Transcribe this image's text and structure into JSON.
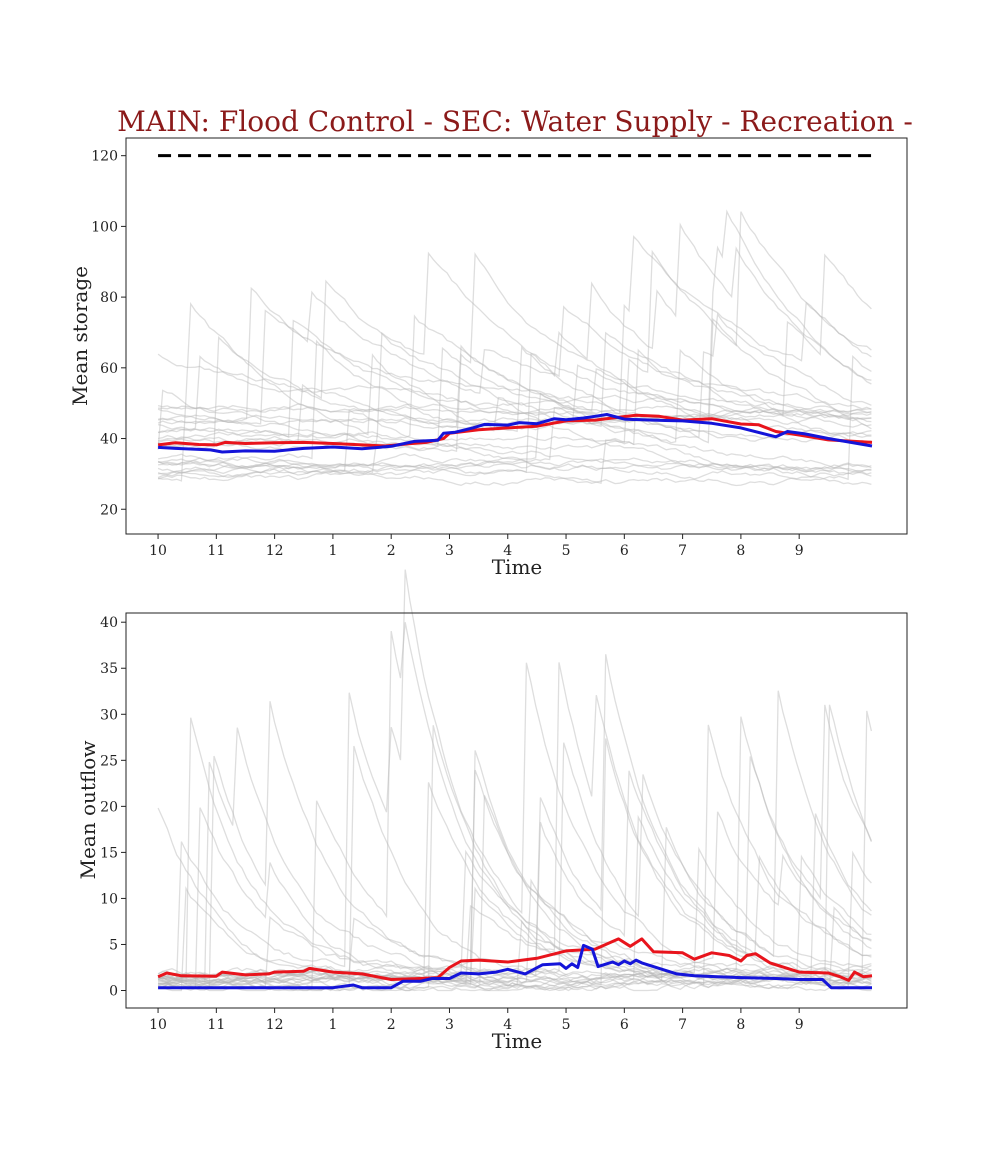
{
  "figure": {
    "title": "MAIN: Flood Control - SEC: Water Supply - Recreation -"
  },
  "chart_data": [
    {
      "type": "line",
      "ylabel": "Mean storage",
      "xlabel": "Time",
      "x_tick_labels": [
        "10",
        "11",
        "12",
        "1",
        "2",
        "3",
        "4",
        "5",
        "6",
        "7",
        "8",
        "9"
      ],
      "y_ticks": [
        20,
        40,
        60,
        80,
        100,
        120
      ],
      "xlim": [
        -0.55,
        12.85
      ],
      "ylim": [
        13,
        125
      ],
      "grid": false,
      "reference_line": {
        "value": 120,
        "style": "dashed",
        "color": "#000000",
        "x_range": [
          0,
          12.25
        ]
      },
      "colors": {
        "red": "#e8141c",
        "blue": "#1414d9",
        "ensemble": "#b5b5b5"
      },
      "series": [
        {
          "color": "red",
          "points": [
            [
              0,
              38.2
            ],
            [
              0.3,
              38.8
            ],
            [
              0.7,
              38.3
            ],
            [
              1,
              38.2
            ],
            [
              1.15,
              38.9
            ],
            [
              1.5,
              38.6
            ],
            [
              2,
              38.8
            ],
            [
              2.5,
              38.9
            ],
            [
              3,
              38.6
            ],
            [
              3.5,
              38.2
            ],
            [
              3.9,
              37.9
            ],
            [
              4.3,
              38.5
            ],
            [
              4.6,
              38.9
            ],
            [
              4.9,
              40
            ],
            [
              5,
              41.5
            ],
            [
              5.5,
              42.5
            ],
            [
              6,
              43
            ],
            [
              6.5,
              43.5
            ],
            [
              7,
              45
            ],
            [
              7.5,
              45.2
            ],
            [
              7.9,
              46
            ],
            [
              8.2,
              46.6
            ],
            [
              8.6,
              46.3
            ],
            [
              9,
              45.2
            ],
            [
              9.5,
              45.6
            ],
            [
              10,
              44.1
            ],
            [
              10.3,
              43.9
            ],
            [
              10.6,
              42
            ],
            [
              11,
              41
            ],
            [
              11.5,
              39.6
            ],
            [
              12.25,
              38.9
            ]
          ]
        },
        {
          "color": "blue",
          "points": [
            [
              0,
              37.5
            ],
            [
              0.3,
              37.2
            ],
            [
              0.9,
              36.8
            ],
            [
              1.1,
              36.2
            ],
            [
              1.5,
              36.5
            ],
            [
              2,
              36.4
            ],
            [
              2.5,
              37.2
            ],
            [
              3,
              37.6
            ],
            [
              3.5,
              37.1
            ],
            [
              4,
              37.8
            ],
            [
              4.4,
              39.2
            ],
            [
              4.8,
              39.5
            ],
            [
              4.9,
              41.5
            ],
            [
              5.1,
              41.8
            ],
            [
              5.4,
              43
            ],
            [
              5.6,
              44
            ],
            [
              6,
              43.8
            ],
            [
              6.2,
              44.5
            ],
            [
              6.5,
              44.2
            ],
            [
              6.8,
              45.6
            ],
            [
              7,
              45.3
            ],
            [
              7.3,
              45.8
            ],
            [
              7.5,
              46.3
            ],
            [
              7.7,
              46.8
            ],
            [
              8,
              45.5
            ],
            [
              8.3,
              45.3
            ],
            [
              8.7,
              45.1
            ],
            [
              9,
              45
            ],
            [
              9.5,
              44.3
            ],
            [
              10,
              43
            ],
            [
              10.6,
              40.5
            ],
            [
              10.8,
              42
            ],
            [
              11.1,
              41.3
            ],
            [
              11.5,
              40
            ],
            [
              12.25,
              37.9
            ]
          ]
        }
      ]
    },
    {
      "type": "line",
      "ylabel": "Mean outflow",
      "xlabel": "Time",
      "x_tick_labels": [
        "10",
        "11",
        "12",
        "1",
        "2",
        "3",
        "4",
        "5",
        "6",
        "7",
        "8",
        "9"
      ],
      "y_ticks": [
        0,
        5,
        10,
        15,
        20,
        25,
        30,
        35,
        40
      ],
      "xlim": [
        -0.55,
        12.85
      ],
      "ylim": [
        -1.9,
        41
      ],
      "grid": false,
      "colors": {
        "red": "#e8141c",
        "blue": "#1414d9",
        "ensemble": "#b5b5b5"
      },
      "series": [
        {
          "color": "red",
          "points": [
            [
              0,
              1.5
            ],
            [
              0.15,
              1.9
            ],
            [
              0.4,
              1.6
            ],
            [
              1,
              1.55
            ],
            [
              1.1,
              2
            ],
            [
              1.5,
              1.7
            ],
            [
              1.9,
              1.8
            ],
            [
              2,
              2
            ],
            [
              2.5,
              2.1
            ],
            [
              2.6,
              2.4
            ],
            [
              3,
              2
            ],
            [
              3.5,
              1.8
            ],
            [
              4,
              1.2
            ],
            [
              4.5,
              1.3
            ],
            [
              4.8,
              1.4
            ],
            [
              5,
              2.5
            ],
            [
              5.2,
              3.2
            ],
            [
              5.5,
              3.3
            ],
            [
              6,
              3.1
            ],
            [
              6.5,
              3.5
            ],
            [
              7,
              4.3
            ],
            [
              7.5,
              4.5
            ],
            [
              7.9,
              5.6
            ],
            [
              8.1,
              4.8
            ],
            [
              8.3,
              5.6
            ],
            [
              8.5,
              4.2
            ],
            [
              9,
              4.1
            ],
            [
              9.2,
              3.4
            ],
            [
              9.5,
              4.1
            ],
            [
              9.8,
              3.8
            ],
            [
              10,
              3.2
            ],
            [
              10.1,
              3.8
            ],
            [
              10.25,
              4
            ],
            [
              10.5,
              3
            ],
            [
              11,
              2
            ],
            [
              11.5,
              1.9
            ],
            [
              11.7,
              1.5
            ],
            [
              11.85,
              1.1
            ],
            [
              11.95,
              2
            ],
            [
              12.1,
              1.5
            ],
            [
              12.25,
              1.6
            ]
          ]
        },
        {
          "color": "blue",
          "points": [
            [
              0,
              0.3
            ],
            [
              1,
              0.3
            ],
            [
              2,
              0.3
            ],
            [
              3,
              0.3
            ],
            [
              3.35,
              0.6
            ],
            [
              3.5,
              0.3
            ],
            [
              4,
              0.3
            ],
            [
              4.2,
              1
            ],
            [
              4.5,
              1
            ],
            [
              4.7,
              1.3
            ],
            [
              5,
              1.3
            ],
            [
              5.2,
              1.9
            ],
            [
              5.5,
              1.8
            ],
            [
              5.8,
              2
            ],
            [
              6,
              2.3
            ],
            [
              6.3,
              1.8
            ],
            [
              6.6,
              2.8
            ],
            [
              6.9,
              2.9
            ],
            [
              7,
              2.4
            ],
            [
              7.1,
              2.9
            ],
            [
              7.2,
              2.5
            ],
            [
              7.3,
              4.9
            ],
            [
              7.45,
              4.5
            ],
            [
              7.55,
              2.6
            ],
            [
              7.7,
              2.9
            ],
            [
              7.8,
              3.1
            ],
            [
              7.9,
              2.8
            ],
            [
              8,
              3.2
            ],
            [
              8.1,
              2.9
            ],
            [
              8.2,
              3.3
            ],
            [
              8.3,
              3
            ],
            [
              8.6,
              2.4
            ],
            [
              8.9,
              1.8
            ],
            [
              9.2,
              1.6
            ],
            [
              9.6,
              1.5
            ],
            [
              10,
              1.4
            ],
            [
              10.6,
              1.3
            ],
            [
              11,
              1.2
            ],
            [
              11.4,
              1.2
            ],
            [
              11.55,
              0.3
            ],
            [
              12.25,
              0.3
            ]
          ]
        }
      ]
    }
  ]
}
